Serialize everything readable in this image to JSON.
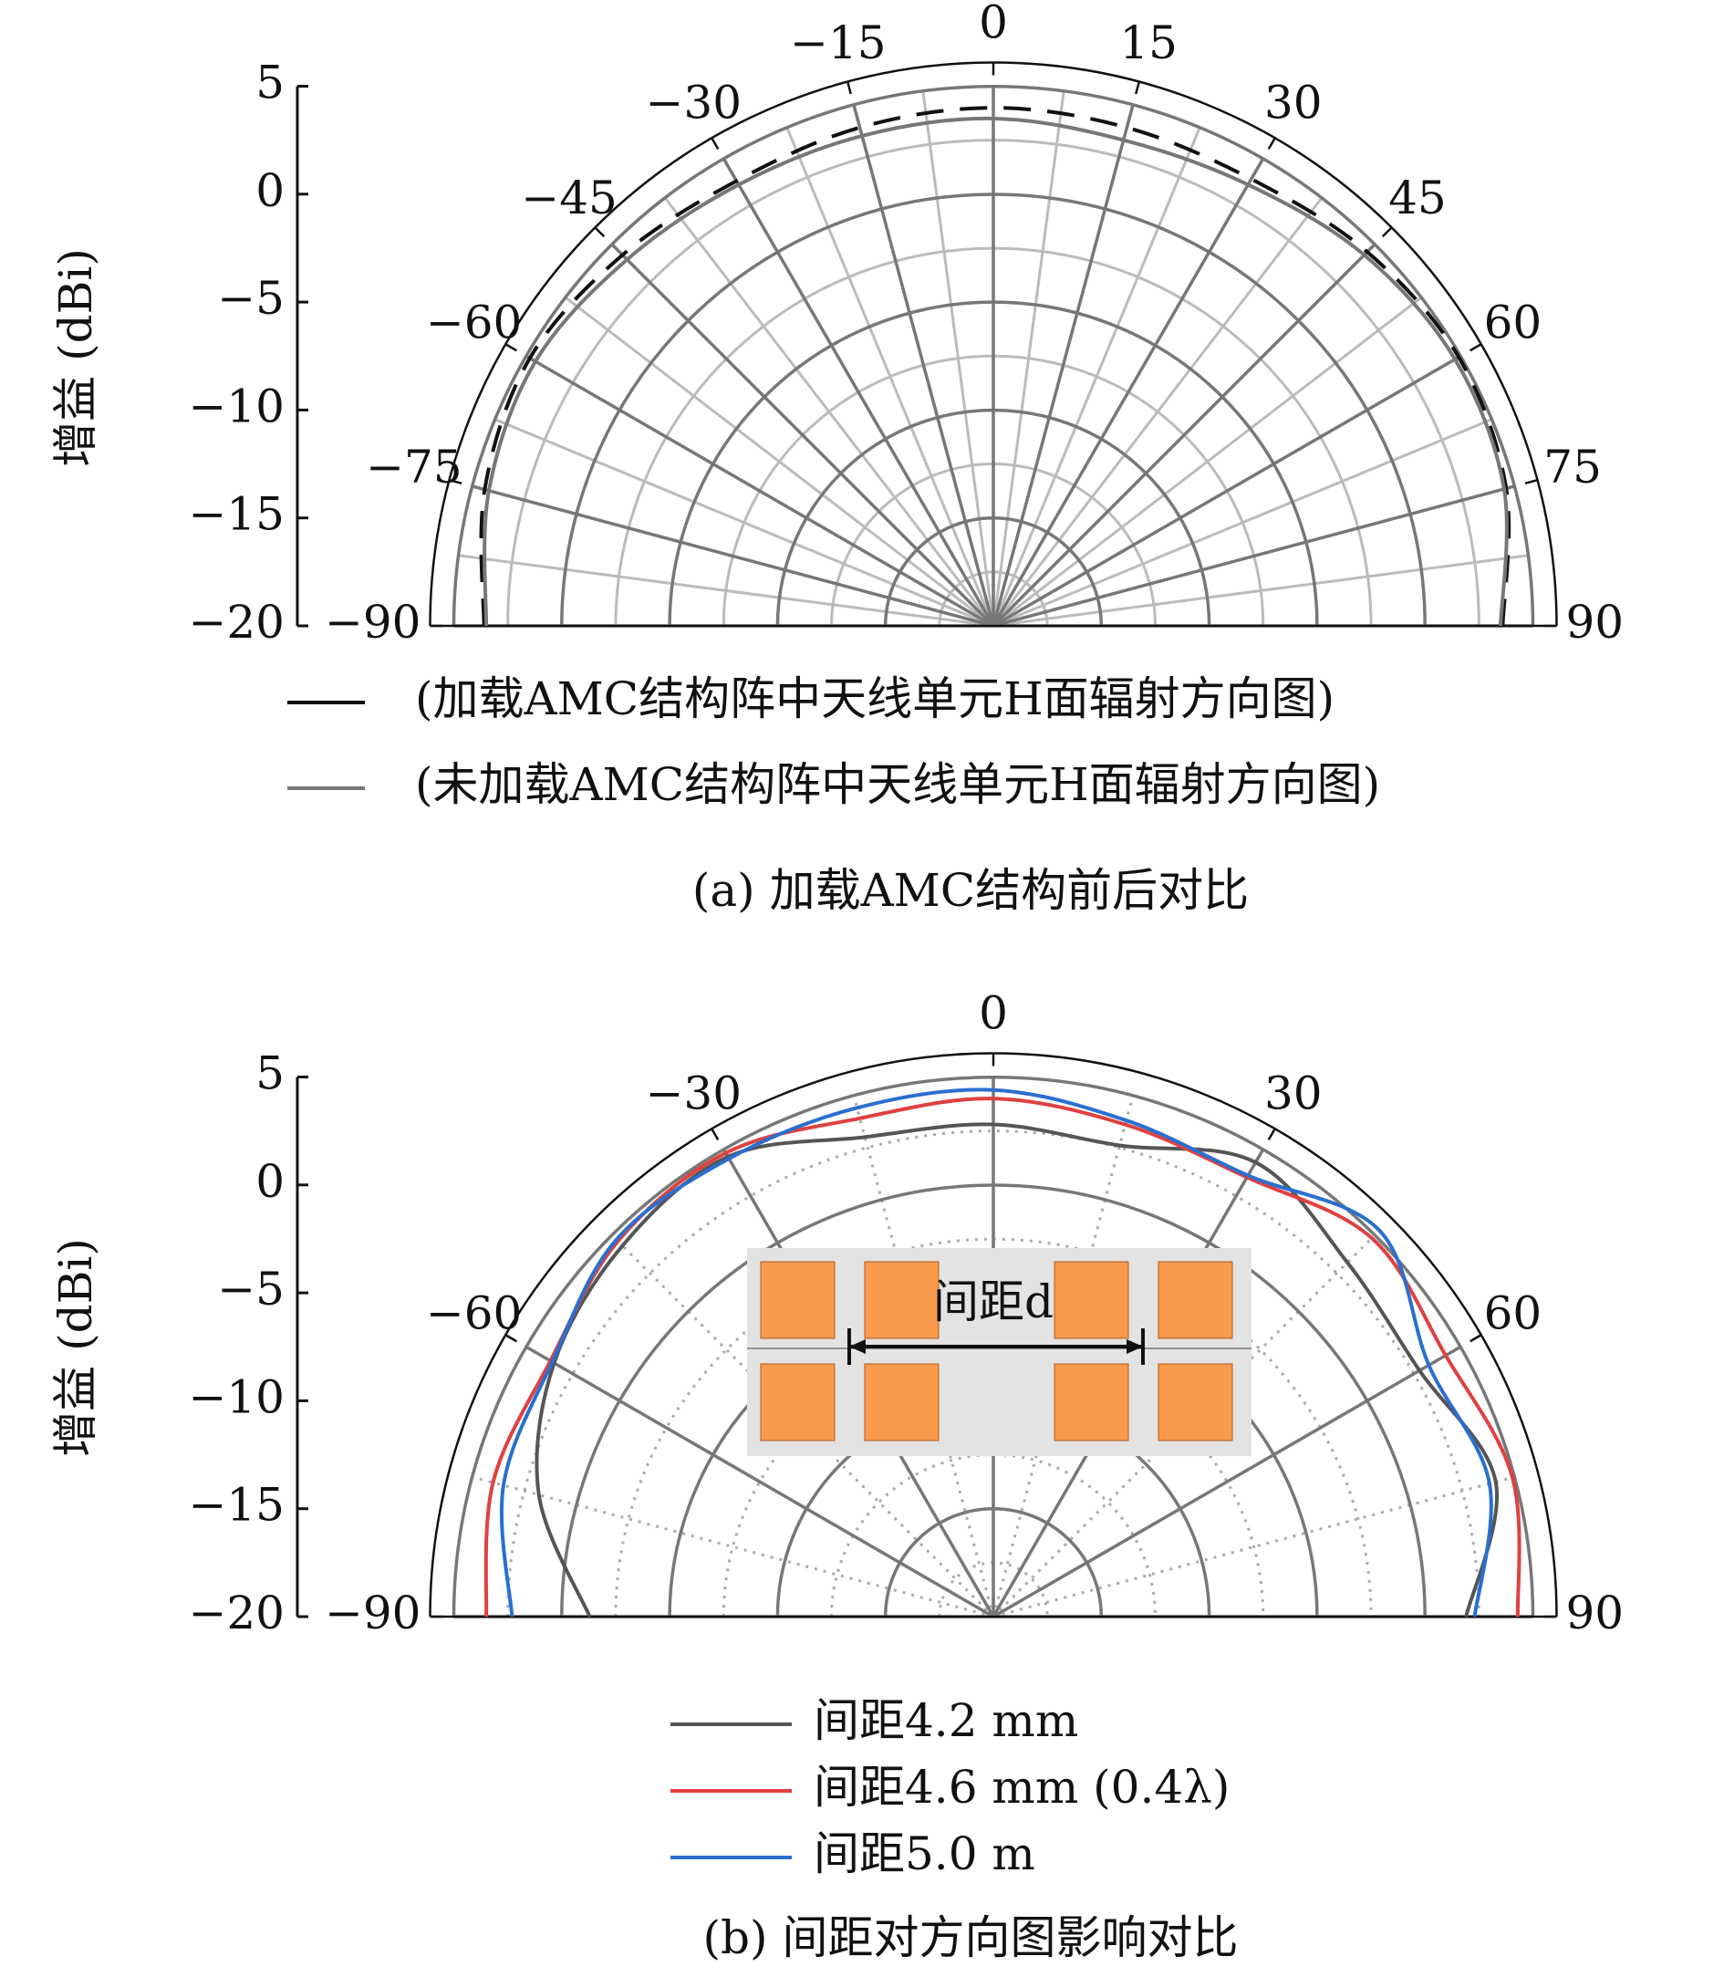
{
  "chart_data": [
    {
      "type": "polar",
      "caption": "(a) 加载AMC结构前后对比",
      "ylabel": "增益 (dBi)",
      "ylim": [
        -20,
        5
      ],
      "yticks": [
        {
          "value": -20,
          "label": "−20"
        },
        {
          "value": -15,
          "label": "−15"
        },
        {
          "value": -10,
          "label": "−10"
        },
        {
          "value": -5,
          "label": "−5"
        },
        0,
        5
      ],
      "angles": [
        -90,
        -75,
        -60,
        -45,
        -30,
        -15,
        0,
        15,
        30,
        45,
        60,
        75,
        90
      ],
      "xticks": [
        {
          "value": -90,
          "label": "−90"
        },
        {
          "value": -75,
          "label": "−75"
        },
        {
          "value": -60,
          "label": "−60"
        },
        {
          "value": -45,
          "label": "−45"
        },
        {
          "value": -30,
          "label": "−30"
        },
        {
          "value": -15,
          "label": "−15"
        },
        0,
        15,
        30,
        45,
        60,
        75,
        90
      ],
      "grid": "solid",
      "series": [
        {
          "name": "(加载AMC结构阵中天线单元H面辐射方向图)",
          "color": "#111111",
          "linestyle": "dashed",
          "values": [
            3.6,
            4.4,
            4.8,
            4.3,
            3.8,
            3.9,
            4.0,
            3.9,
            3.9,
            4.5,
            4.9,
            4.6,
            3.6
          ]
        },
        {
          "name": "(未加载AMC结构阵中天线单元H面辐射方向图)",
          "color": "#777777",
          "linestyle": "solid",
          "values": [
            3.5,
            4.2,
            4.5,
            4.0,
            3.6,
            3.5,
            3.5,
            3.3,
            3.6,
            4.3,
            4.7,
            4.5,
            3.5
          ]
        }
      ]
    },
    {
      "type": "polar",
      "caption": "(b) 间距对方向图影响对比",
      "ylabel": "增益 (dBi)",
      "inset_label": "间距d",
      "ylim": [
        -20,
        5
      ],
      "yticks": [
        {
          "value": -20,
          "label": "−20"
        },
        {
          "value": -15,
          "label": "−15"
        },
        {
          "value": -10,
          "label": "−10"
        },
        {
          "value": -5,
          "label": "−5"
        },
        0,
        5
      ],
      "angles": [
        -90,
        -75,
        -60,
        -45,
        -30,
        -15,
        0,
        15,
        30,
        45,
        60,
        75,
        90
      ],
      "xticks": [
        {
          "value": -90,
          "label": "−90"
        },
        {
          "value": -60,
          "label": "−60"
        },
        {
          "value": -30,
          "label": "−30"
        },
        0,
        30,
        60,
        90
      ],
      "grid": "dotted",
      "series": [
        {
          "name": "间距4.2 mm",
          "color": "#555555",
          "linestyle": "solid",
          "values": [
            -1.3,
            1.8,
            3.5,
            4.3,
            4.6,
            3.0,
            2.8,
            2.6,
            4.3,
            3.2,
            2.8,
            4.1,
            1.9
          ]
        },
        {
          "name": "间距4.6 mm (0.4λ)",
          "color": "#e04040",
          "linestyle": "solid",
          "values": [
            3.5,
            4.0,
            3.7,
            4.6,
            4.8,
            3.9,
            4.0,
            3.6,
            3.5,
            4.8,
            4.2,
            4.9,
            4.3
          ]
        },
        {
          "name": "间距5.0 m",
          "color": "#2a6fd0",
          "linestyle": "solid",
          "values": [
            2.3,
            3.5,
            3.6,
            4.7,
            4.5,
            4.4,
            4.4,
            3.8,
            3.6,
            5.3,
            3.3,
            3.8,
            2.3
          ]
        }
      ]
    }
  ]
}
